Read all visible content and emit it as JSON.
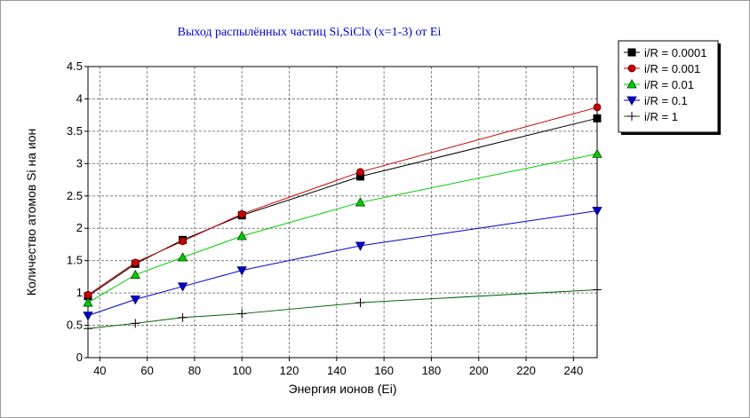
{
  "chart_data": {
    "type": "line",
    "title": "Выход распылённых частиц  Si,SiClx (x=1-3) от Ei",
    "xlabel": "Энергия ионов (Ei)",
    "ylabel": "Количество атомов Si на ион",
    "xlim": [
      35,
      250
    ],
    "ylim": [
      0,
      4.5
    ],
    "x_ticks": [
      40,
      60,
      80,
      100,
      120,
      140,
      160,
      180,
      200,
      220,
      240
    ],
    "y_ticks": [
      0,
      0.5,
      1,
      1.5,
      2,
      2.5,
      3,
      3.5,
      4,
      4.5
    ],
    "y_tick_labels": [
      "0",
      "0.5",
      "1",
      "1.5",
      "2",
      "2.5",
      "3",
      "3.5",
      "4",
      "4.5"
    ],
    "grid": true,
    "legend_position": "top-right",
    "series": [
      {
        "name": "i/R = 0.0001",
        "color": "#000000",
        "marker": "square",
        "x": [
          35,
          55,
          75,
          100,
          150,
          250
        ],
        "y": [
          0.95,
          1.45,
          1.82,
          2.2,
          2.8,
          3.7
        ]
      },
      {
        "name": "i/R = 0.001",
        "color": "#cc0000",
        "marker": "circle",
        "x": [
          35,
          55,
          75,
          100,
          150,
          250
        ],
        "y": [
          0.97,
          1.47,
          1.8,
          2.22,
          2.87,
          3.87
        ]
      },
      {
        "name": "i/R = 0.01",
        "color": "#00cc00",
        "marker": "triangle-up",
        "x": [
          35,
          55,
          75,
          100,
          150,
          250
        ],
        "y": [
          0.85,
          1.28,
          1.55,
          1.88,
          2.4,
          3.15
        ]
      },
      {
        "name": "i/R = 0.1",
        "color": "#0000cc",
        "marker": "triangle-down",
        "x": [
          35,
          55,
          75,
          100,
          150,
          250
        ],
        "y": [
          0.65,
          0.9,
          1.1,
          1.35,
          1.73,
          2.27
        ]
      },
      {
        "name": "i/R = 1",
        "color": "#006600",
        "marker_color": "#000000",
        "marker": "plus",
        "x": [
          35,
          55,
          75,
          100,
          150,
          250
        ],
        "y": [
          0.45,
          0.53,
          0.62,
          0.68,
          0.85,
          1.05
        ]
      }
    ]
  }
}
